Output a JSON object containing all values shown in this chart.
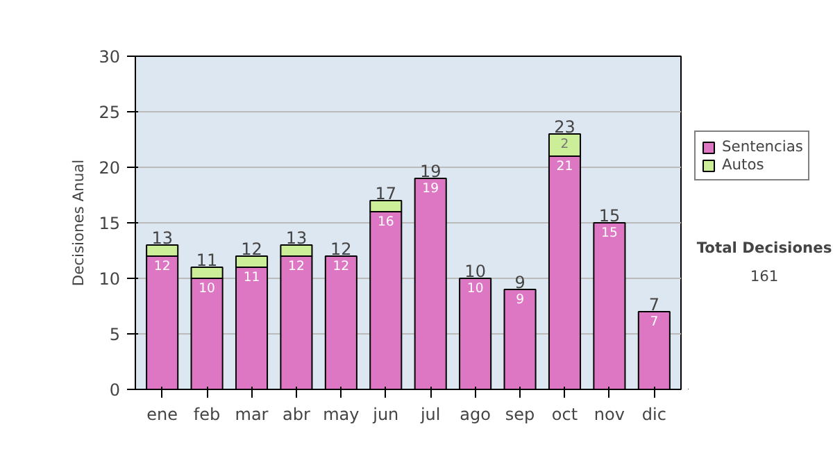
{
  "chart_data": {
    "type": "bar",
    "stacked": true,
    "ylabel": "Decisiones Anual",
    "categories": [
      "ene",
      "feb",
      "mar",
      "abr",
      "may",
      "jun",
      "jul",
      "ago",
      "sep",
      "oct",
      "nov",
      "dic"
    ],
    "series": [
      {
        "name": "Sentencias",
        "color": "#dd77c4",
        "values": [
          12,
          10,
          11,
          12,
          12,
          16,
          19,
          10,
          9,
          21,
          15,
          7
        ],
        "value_labels": [
          "12",
          "10",
          "11",
          "12",
          "12",
          "16",
          "19",
          "10",
          "9",
          "21",
          "15",
          "7"
        ]
      },
      {
        "name": "Autos",
        "color": "#ccee99",
        "values": [
          1,
          1,
          1,
          1,
          0,
          1,
          0,
          0,
          0,
          2,
          0,
          0
        ],
        "value_labels": [
          null,
          null,
          null,
          null,
          null,
          null,
          null,
          null,
          null,
          "2",
          null,
          null
        ]
      }
    ],
    "totals": [
      "13",
      "11",
      "12",
      "13",
      "12",
      "17",
      "19",
      "10",
      "9",
      "23",
      "15",
      "7"
    ],
    "ylim": [
      0,
      30
    ],
    "yticks": [
      0,
      5,
      10,
      15,
      20,
      25,
      30
    ],
    "grid": "y",
    "legend": "right",
    "annotations": [
      "Total Decisiones",
      "161"
    ]
  }
}
